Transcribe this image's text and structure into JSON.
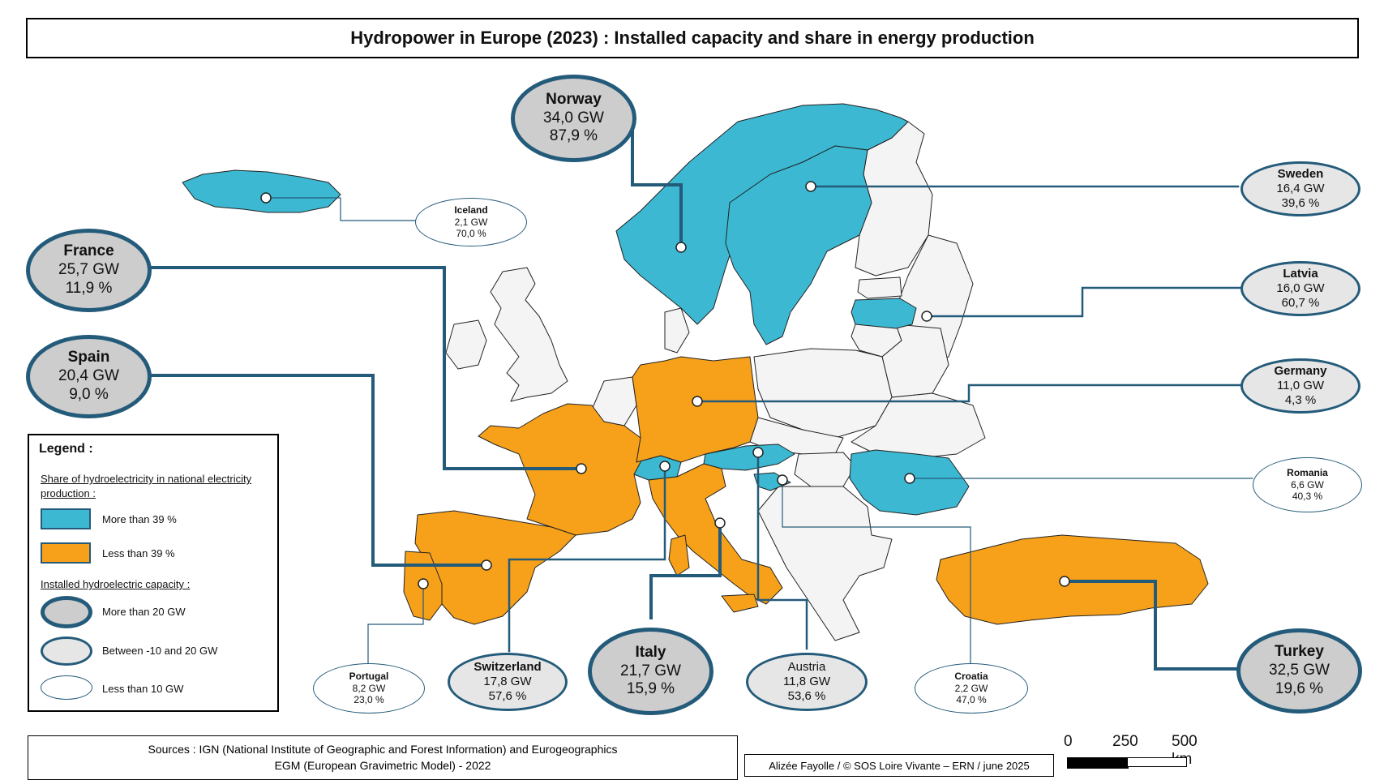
{
  "title": "Hydropower in Europe (2023) : Installed capacity and share in energy production",
  "colors": {
    "above39": "#3cb8d2",
    "below39": "#f7a11a",
    "other": "#f4f4f4",
    "border": "#222222",
    "leader": "#245b7a"
  },
  "countries": [
    {
      "name": "Norway",
      "capacity": "34,0 GW",
      "share": "87,9 %",
      "category": "more-than-39",
      "capacity_class": "more-than-20"
    },
    {
      "name": "Sweden",
      "capacity": "16,4 GW",
      "share": "39,6 %",
      "category": "more-than-39",
      "capacity_class": "between-10-20"
    },
    {
      "name": "Iceland",
      "capacity": "2,1 GW",
      "share": "70,0 %",
      "category": "more-than-39",
      "capacity_class": "less-than-10"
    },
    {
      "name": "France",
      "capacity": "25,7 GW",
      "share": "11,9 %",
      "category": "less-than-39",
      "capacity_class": "more-than-20"
    },
    {
      "name": "Latvia",
      "capacity": "16,0 GW",
      "share": "60,7 %",
      "category": "more-than-39",
      "capacity_class": "between-10-20"
    },
    {
      "name": "Spain",
      "capacity": "20,4 GW",
      "share": "9,0 %",
      "category": "less-than-39",
      "capacity_class": "more-than-20"
    },
    {
      "name": "Germany",
      "capacity": "11,0 GW",
      "share": "4,3 %",
      "category": "less-than-39",
      "capacity_class": "between-10-20"
    },
    {
      "name": "Romania",
      "capacity": "6,6 GW",
      "share": "40,3 %",
      "category": "more-than-39",
      "capacity_class": "less-than-10"
    },
    {
      "name": "Portugal",
      "capacity": "8,2 GW",
      "share": "23,0 %",
      "category": "less-than-39",
      "capacity_class": "less-than-10"
    },
    {
      "name": "Switzerland",
      "capacity": "17,8 GW",
      "share": "57,6 %",
      "category": "more-than-39",
      "capacity_class": "between-10-20"
    },
    {
      "name": "Italy",
      "capacity": "21,7 GW",
      "share": "15,9 %",
      "category": "less-than-39",
      "capacity_class": "more-than-20"
    },
    {
      "name": "Austria",
      "capacity": "11,8 GW",
      "share": "53,6 %",
      "category": "more-than-39",
      "capacity_class": "between-10-20"
    },
    {
      "name": "Croatia",
      "capacity": "2,2 GW",
      "share": "47,0 %",
      "category": "more-than-39",
      "capacity_class": "less-than-10"
    },
    {
      "name": "Turkey",
      "capacity": "32,5 GW",
      "share": "19,6 %",
      "category": "less-than-39",
      "capacity_class": "more-than-20"
    }
  ],
  "legend": {
    "title": "Legend :",
    "share_heading": "Share of hydroelectricity in national electricity production :",
    "share_more": "More than 39 %",
    "share_less": "Less than 39 %",
    "capacity_heading": "Installed hydroelectric capacity :",
    "cap_more": "More than 20 GW",
    "cap_between": "Between -10 and 20 GW",
    "cap_less": "Less than 10 GW"
  },
  "sources_line1": "Sources : IGN (National Institute of Geographic and Forest Information) and Eurogeographics",
  "sources_line2": "EGM (European Gravimetric Model) - 2022",
  "author": "Alizée Fayolle / © SOS Loire Vivante – ERN / june 2025",
  "scale": {
    "labels": [
      "0",
      "250",
      "500 km"
    ]
  }
}
